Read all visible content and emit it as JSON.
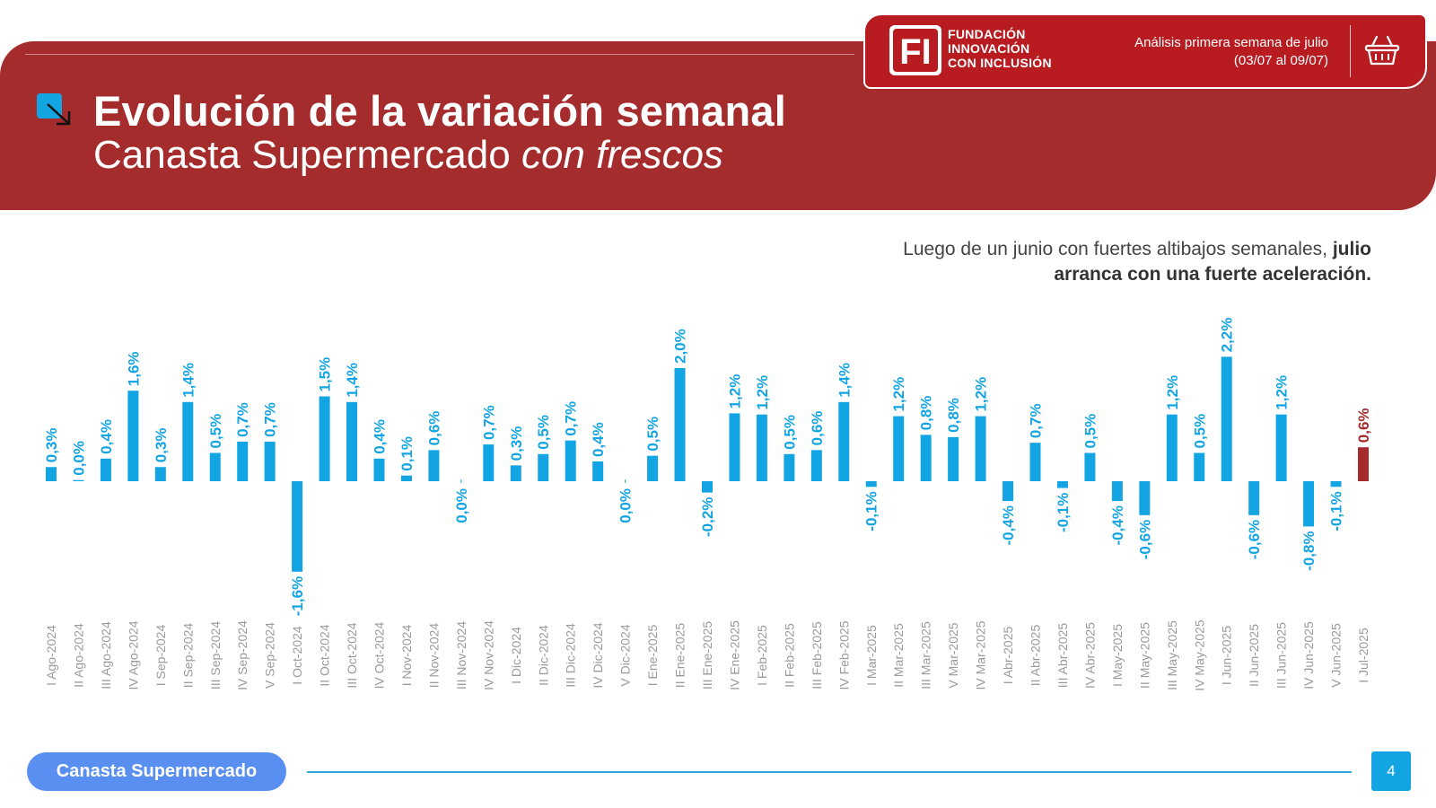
{
  "header": {
    "title": "Evolución de la variación semanal",
    "subtitle_regular": "Canasta Supermercado ",
    "subtitle_italic": "con frescos",
    "icon": "arrow-down-right-square-icon"
  },
  "brand": {
    "logo": "FI",
    "name_lines": [
      "FUNDACIÓN",
      "INNOVACIÓN",
      "CON INCLUSIÓN"
    ],
    "analysis_line1": "Análisis primera semana de julio",
    "analysis_line2": "(03/07 al 09/07)",
    "icon": "shopping-basket-icon"
  },
  "headline": {
    "text_regular": "Luego de un junio con fuertes altibajos semanales, ",
    "text_bold_1": "julio",
    "text_bold_2": "arranca con una fuerte aceleración."
  },
  "colors": {
    "brand_red": "#a42c2d",
    "bar_blue": "#13a5e3",
    "bar_highlight": "#a42c2d",
    "axis_label": "#9a9a9a"
  },
  "chart_data": {
    "type": "bar",
    "categories": [
      "I Ago-2024",
      "II Ago-2024",
      "III Ago-2024",
      "IV Ago-2024",
      "I Sep-2024",
      "II Sep-2024",
      "III Sep-2024",
      "IV Sep-2024",
      "V Sep-2024",
      "I Oct-2024",
      "II Oct-2024",
      "III Oct-2024",
      "IV Oct-2024",
      "I Nov-2024",
      "II Nov-2024",
      "III Nov-2024",
      "IV Nov-2024",
      "I Dic-2024",
      "II Dic-2024",
      "III Dic-2024",
      "IV Dic-2024",
      "V Dic-2024",
      "I Ene-2025",
      "II Ene-2025",
      "III Ene-2025",
      "IV Ene-2025",
      "I Feb-2025",
      "II Feb-2025",
      "III Feb-2025",
      "IV Feb-2025",
      "I Mar-2025",
      "II Mar-2025",
      "III Mar-2025",
      "V Mar-2025",
      "IV Mar-2025",
      "I Abr-2025",
      "II Abr-2025",
      "III Abr-2025",
      "IV Abr-2025",
      "I May-2025",
      "II May-2025",
      "III May-2025",
      "IV May-2025",
      "I Jun-2025",
      "II Jun-2025",
      "III Jun-2025",
      "IV Jun-2025",
      "V Jun-2025",
      "I Jul-2025"
    ],
    "values": [
      0.25,
      0.02,
      0.4,
      1.6,
      0.25,
      1.4,
      0.5,
      0.7,
      0.7,
      -1.6,
      1.5,
      1.4,
      0.4,
      0.1,
      0.55,
      0.0,
      0.65,
      0.28,
      0.48,
      0.72,
      0.35,
      0.0,
      0.45,
      2.0,
      -0.2,
      1.2,
      1.18,
      0.48,
      0.55,
      1.4,
      -0.1,
      1.15,
      0.82,
      0.78,
      1.15,
      -0.35,
      0.68,
      -0.12,
      0.5,
      -0.35,
      -0.6,
      1.18,
      0.5,
      2.2,
      -0.6,
      1.18,
      -0.8,
      -0.1,
      0.6
    ],
    "labels": [
      "0,3%",
      "0,0%",
      "0,4%",
      "1,6%",
      "0,3%",
      "1,4%",
      "0,5%",
      "0,7%",
      "0,7%",
      "-1,6%",
      "1,5%",
      "1,4%",
      "0,4%",
      "0,1%",
      "0,6%",
      "0,0%",
      "0,7%",
      "0,3%",
      "0,5%",
      "0,7%",
      "0,4%",
      "0,0%",
      "0,5%",
      "2,0%",
      "-0,2%",
      "1,2%",
      "1,2%",
      "0,5%",
      "0,6%",
      "1,4%",
      "-0,1%",
      "1,2%",
      "0,8%",
      "0,8%",
      "1,2%",
      "-0,4%",
      "0,7%",
      "-0,1%",
      "0,5%",
      "-0,4%",
      "-0,6%",
      "1,2%",
      "0,5%",
      "2,2%",
      "-0,6%",
      "1,2%",
      "-0,8%",
      "-0,1%",
      "0,6%"
    ],
    "highlight_index": 48,
    "title": "",
    "xlabel": "",
    "ylabel": "",
    "ylim": [
      -2.5,
      2.5
    ],
    "grid": false
  },
  "footer": {
    "tag": "Canasta Supermercado",
    "page_number": "4"
  }
}
